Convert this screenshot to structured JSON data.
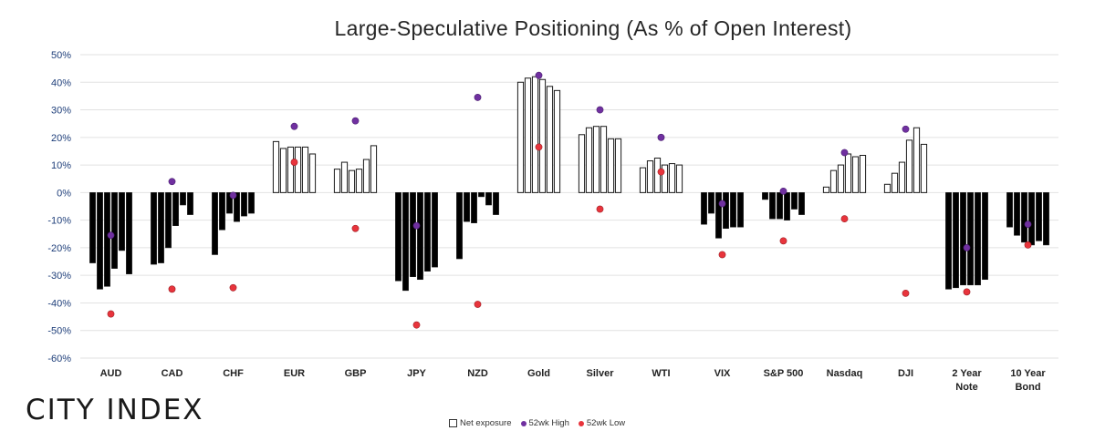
{
  "chart_data": {
    "type": "bar",
    "title": "Large-Speculative Positioning (As % of Open Interest)",
    "ylim": [
      -60,
      50
    ],
    "yticks": [
      "50%",
      "40%",
      "30%",
      "20%",
      "10%",
      "0%",
      "-10%",
      "-20%",
      "-30%",
      "-40%",
      "-50%",
      "-60%"
    ],
    "grid": true,
    "legend_position": "bottom",
    "colors": {
      "negative_fill": "#000000",
      "positive_fill": "#ffffff",
      "bar_outline": "#1a1a1a",
      "high": "#7030a0",
      "low": "#e8343c",
      "grid": "#e2e2e2"
    },
    "series": [
      {
        "name": "Net exposure",
        "kind": "bars"
      },
      {
        "name": "52wk High",
        "kind": "points"
      },
      {
        "name": "52wk Low",
        "kind": "points"
      }
    ],
    "categories": [
      {
        "label": "AUD",
        "values": [
          -25.5,
          -35,
          -34,
          -27.5,
          -21,
          -29.5
        ],
        "high": -15.5,
        "low": -44
      },
      {
        "label": "CAD",
        "values": [
          -26,
          -25.5,
          -20,
          -12,
          -4.5,
          -8
        ],
        "high": 4,
        "low": -35
      },
      {
        "label": "CHF",
        "values": [
          -22.5,
          -13.5,
          -7.5,
          -10.5,
          -8.5,
          -7.5
        ],
        "high": -1,
        "low": -34.5
      },
      {
        "label": "EUR",
        "values": [
          18.5,
          16,
          16.5,
          16.5,
          16.5,
          14
        ],
        "high": 24,
        "low": 11
      },
      {
        "label": "GBP",
        "values": [
          8.5,
          11,
          8,
          8.5,
          12,
          17
        ],
        "high": 26,
        "low": -13
      },
      {
        "label": "JPY",
        "values": [
          -32,
          -35.5,
          -30.5,
          -31.5,
          -28.5,
          -27
        ],
        "high": -12,
        "low": -48
      },
      {
        "label": "NZD",
        "values": [
          -24,
          -10.5,
          -11,
          -1.5,
          -4.5,
          -8
        ],
        "high": 34.5,
        "low": -40.5
      },
      {
        "label": "Gold",
        "values": [
          40,
          41.5,
          42,
          41,
          38.5,
          37
        ],
        "high": 42.5,
        "low": 16.5
      },
      {
        "label": "Silver",
        "values": [
          21,
          23.5,
          24,
          24,
          19.5,
          19.5
        ],
        "high": 30,
        "low": -6
      },
      {
        "label": "WTI",
        "values": [
          9,
          11.5,
          12.5,
          10,
          10.5,
          10
        ],
        "high": 20,
        "low": 7.5
      },
      {
        "label": "VIX",
        "values": [
          -11.5,
          -7.5,
          -16.5,
          -13,
          -12.5,
          -12.5
        ],
        "high": -4,
        "low": -22.5
      },
      {
        "label": "S&P 500",
        "values": [
          -2.5,
          -9.5,
          -9.5,
          -10,
          -6,
          -8
        ],
        "high": 0.5,
        "low": -17.5
      },
      {
        "label": "Nasdaq",
        "values": [
          2,
          8,
          10,
          14,
          13,
          13.5
        ],
        "high": 14.5,
        "low": -9.5
      },
      {
        "label": "DJI",
        "values": [
          3,
          7,
          11,
          19,
          23.5,
          17.5
        ],
        "high": 23,
        "low": -36.5
      },
      {
        "label": [
          "2 Year",
          "Note"
        ],
        "values": [
          -35,
          -34.5,
          -33.5,
          -33.5,
          -33.5,
          -31.5
        ],
        "high": -20,
        "low": -36
      },
      {
        "label": [
          "10 Year",
          "Bond"
        ],
        "values": [
          -12.5,
          -15.5,
          -18,
          -19,
          -17.5,
          -19
        ],
        "high": -11.5,
        "low": -19
      }
    ]
  },
  "brand": "CITY INDEX",
  "legend": {
    "net": "Net exposure",
    "high": "52wk High",
    "low": "52wk Low"
  }
}
